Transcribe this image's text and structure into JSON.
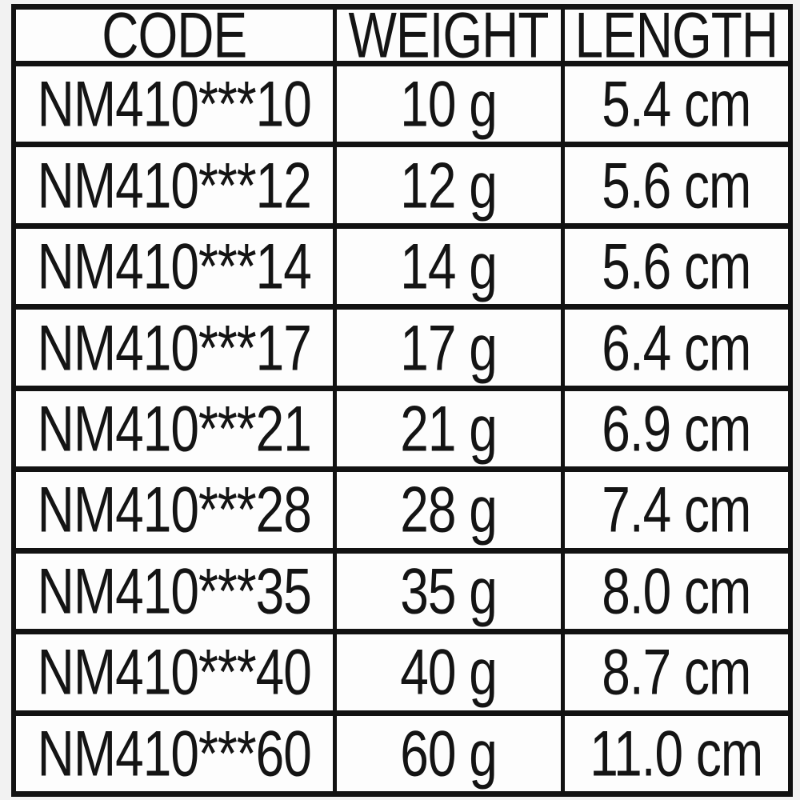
{
  "page": {
    "background_color": "#f2f2f2",
    "border_color": "#121212",
    "cell_background": "#fdfdfd",
    "text_color": "#141414"
  },
  "table": {
    "headers": [
      "CODE",
      "WEIGHT",
      "LENGTH"
    ],
    "rows": [
      {
        "code": "NM410***10",
        "weight": "10 g",
        "length": "5.4 cm"
      },
      {
        "code": "NM410***12",
        "weight": "12 g",
        "length": "5.6 cm"
      },
      {
        "code": "NM410***14",
        "weight": "14 g",
        "length": "5.6 cm"
      },
      {
        "code": "NM410***17",
        "weight": "17 g",
        "length": "6.4 cm"
      },
      {
        "code": "NM410***21",
        "weight": "21 g",
        "length": "6.9 cm"
      },
      {
        "code": "NM410***28",
        "weight": "28 g",
        "length": "7.4 cm"
      },
      {
        "code": "NM410***35",
        "weight": "35 g",
        "length": "8.0 cm"
      },
      {
        "code": "NM410***40",
        "weight": "40 g",
        "length": "8.7 cm"
      },
      {
        "code": "NM410***60",
        "weight": "60 g",
        "length": "11.0 cm"
      }
    ]
  },
  "chart_data": {
    "type": "table",
    "title": "",
    "columns": [
      "CODE",
      "WEIGHT",
      "LENGTH"
    ],
    "rows": [
      [
        "NM410***10",
        "10 g",
        "5.4 cm"
      ],
      [
        "NM410***12",
        "12 g",
        "5.6 cm"
      ],
      [
        "NM410***14",
        "14 g",
        "5.6 cm"
      ],
      [
        "NM410***17",
        "17 g",
        "6.4 cm"
      ],
      [
        "NM410***21",
        "21 g",
        "6.9 cm"
      ],
      [
        "NM410***28",
        "28 g",
        "7.4 cm"
      ],
      [
        "NM410***35",
        "35 g",
        "8.0 cm"
      ],
      [
        "NM410***40",
        "40 g",
        "8.7 cm"
      ],
      [
        "NM410***60",
        "60 g",
        "11.0 cm"
      ]
    ],
    "series": [
      {
        "name": "weight_g",
        "values": [
          10,
          12,
          14,
          17,
          21,
          28,
          35,
          40,
          60
        ]
      },
      {
        "name": "length_cm",
        "values": [
          5.4,
          5.6,
          5.6,
          6.4,
          6.9,
          7.4,
          8.0,
          8.7,
          11.0
        ]
      }
    ],
    "categories": [
      "NM410***10",
      "NM410***12",
      "NM410***14",
      "NM410***17",
      "NM410***21",
      "NM410***28",
      "NM410***35",
      "NM410***40",
      "NM410***60"
    ]
  }
}
